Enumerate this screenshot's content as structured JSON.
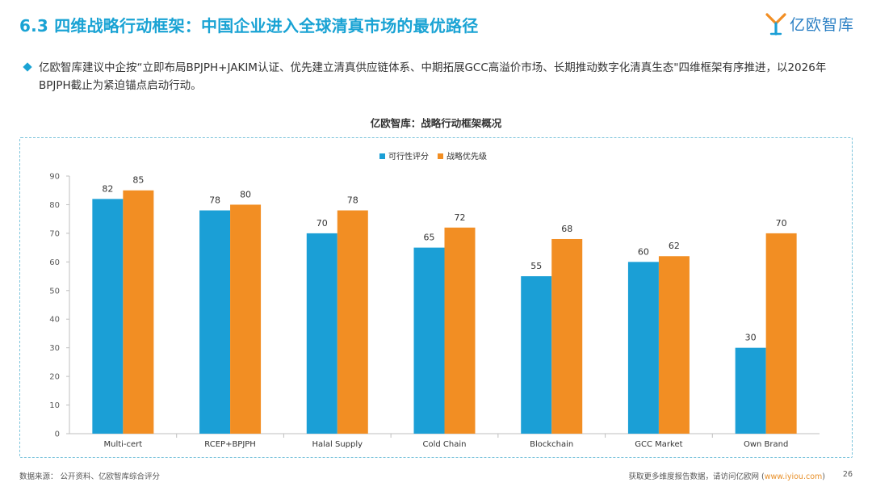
{
  "header": {
    "title": "6.3 四维战略行动框架：中国企业进入全球清真市场的最优路径",
    "logo_text": "亿欧智库"
  },
  "summary": {
    "text": "亿欧智库建议中企按“立即布局BPJPH+JAKIM认证、优先建立清真供应链体系、中期拓展GCC高溢价市场、长期推动数字化清真生态\"四维框架有序推进，以2026年BPJPH截止为紧迫锚点启动行动。"
  },
  "chart_data": {
    "type": "bar",
    "title": "亿欧智库：战略行动框架概况",
    "categories": [
      "Multi-cert",
      "RCEP+BPJPH",
      "Halal Supply",
      "Cold Chain",
      "Blockchain",
      "GCC Market",
      "Own Brand"
    ],
    "series": [
      {
        "name": "可行性评分",
        "color": "#1b9fd6",
        "values": [
          82,
          78,
          70,
          65,
          55,
          60,
          30
        ]
      },
      {
        "name": "战略优先级",
        "color": "#f28e23",
        "values": [
          85,
          80,
          78,
          72,
          68,
          62,
          70
        ]
      }
    ],
    "yticks": [
      0,
      10,
      20,
      30,
      40,
      50,
      60,
      70,
      80,
      90
    ],
    "ylim": [
      0,
      90
    ],
    "xlabel": "",
    "ylabel": "",
    "grid": false,
    "legend_position": "top-center"
  },
  "footer": {
    "source": "数据来源： 公开资料、亿欧智库综合评分",
    "note_prefix": "获取更多维度报告数据，请访问亿欧网 (",
    "note_link": "www.iyiou.com",
    "note_suffix": ")",
    "page_number": "26"
  }
}
